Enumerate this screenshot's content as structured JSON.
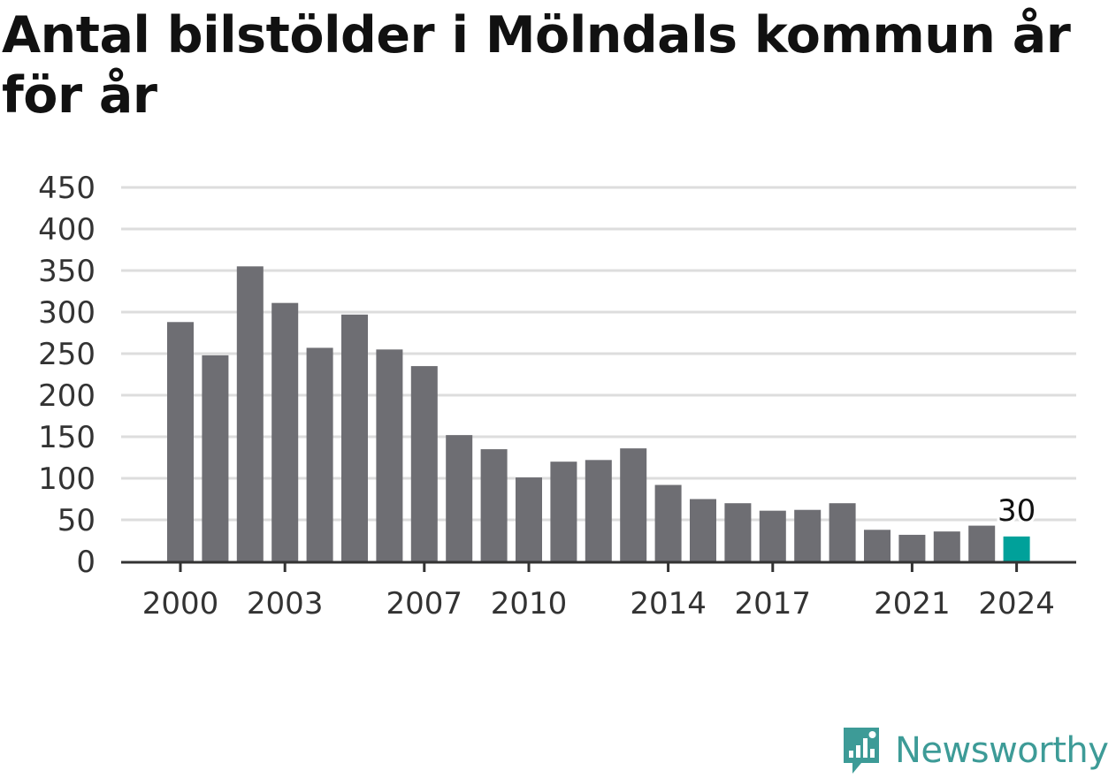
{
  "title": "Antal bilstölder i Mölndals kommun år för år",
  "brand": {
    "name": "Newsworthy",
    "icon": "newsworthy-logo-icon",
    "color": "#3d9b97"
  },
  "colors": {
    "bar": "#6e6e73",
    "highlight": "#00a19a",
    "grid": "#dddddd",
    "axis": "#333333",
    "text": "#333333"
  },
  "chart_data": {
    "type": "bar",
    "categories": [
      "2000",
      "2001",
      "2002",
      "2003",
      "2004",
      "2005",
      "2006",
      "2007",
      "2008",
      "2009",
      "2010",
      "2011",
      "2012",
      "2013",
      "2014",
      "2015",
      "2016",
      "2017",
      "2018",
      "2019",
      "2020",
      "2021",
      "2022",
      "2023",
      "2024"
    ],
    "values": [
      288,
      248,
      355,
      311,
      257,
      297,
      255,
      235,
      152,
      135,
      101,
      120,
      122,
      136,
      92,
      75,
      70,
      61,
      62,
      70,
      38,
      32,
      36,
      43,
      30
    ],
    "x_tick_labels": [
      "2000",
      "2003",
      "2007",
      "2010",
      "2014",
      "2017",
      "2021",
      "2024"
    ],
    "y_ticks": [
      0,
      50,
      100,
      150,
      200,
      250,
      300,
      350,
      400,
      450
    ],
    "ylim": [
      0,
      450
    ],
    "grid": true,
    "highlight": {
      "category": "2024",
      "label": "30"
    }
  }
}
